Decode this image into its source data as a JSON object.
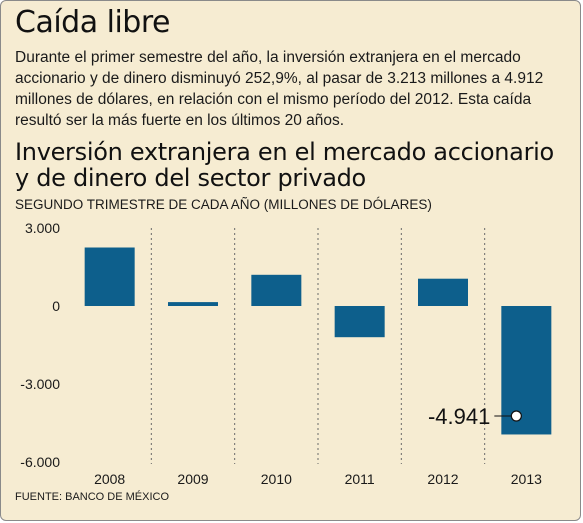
{
  "header": {
    "title": "Caída libre",
    "intro": "Durante el primer semestre del año, la inversión extranjera en el mercado accionario y de dinero disminuyó 252,9%, al pasar de 3.213 millones a 4.912 millones de dólares, en relación con el mismo período del 2012. Esta caída resultó ser la más fuerte en los últimos 20 años."
  },
  "footer": {
    "source": "FUENTE: BANCO DE MÉXICO"
  },
  "colors": {
    "bar": "#0d5f8c",
    "background": "#f6ecd2"
  },
  "chart_data": {
    "type": "bar",
    "title": "Inversión extranjera en el mercado accionario y de dinero del sector privado",
    "subtitle": "SEGUNDO TRIMESTRE DE CADA AÑO (MILLONES DE DÓLARES)",
    "categories": [
      "2008",
      "2009",
      "2010",
      "2011",
      "2012",
      "2013"
    ],
    "values": [
      2250,
      150,
      1200,
      -1200,
      1050,
      -4941
    ],
    "ylim": [
      -6000,
      3000
    ],
    "yticks": [
      3000,
      0,
      -3000,
      -6000
    ],
    "ytick_labels": [
      "3.000",
      "0",
      "-3.000",
      "-6.000"
    ],
    "grid": "dashed vertical separators",
    "annotations": [
      {
        "category": "2013",
        "label": "-4.941"
      }
    ]
  }
}
